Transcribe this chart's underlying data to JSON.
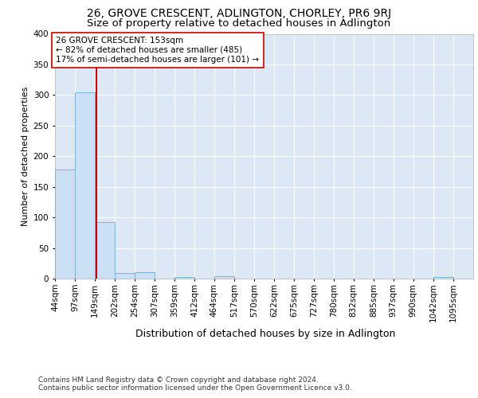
{
  "title1": "26, GROVE CRESCENT, ADLINGTON, CHORLEY, PR6 9RJ",
  "title2": "Size of property relative to detached houses in Adlington",
  "xlabel": "Distribution of detached houses by size in Adlington",
  "ylabel": "Number of detached properties",
  "footer1": "Contains HM Land Registry data © Crown copyright and database right 2024.",
  "footer2": "Contains public sector information licensed under the Open Government Licence v3.0.",
  "bar_edges": [
    44,
    97,
    149,
    202,
    254,
    307,
    359,
    412,
    464,
    517,
    570,
    622,
    675,
    727,
    780,
    832,
    885,
    937,
    990,
    1042,
    1095
  ],
  "bar_heights": [
    178,
    304,
    93,
    9,
    10,
    0,
    3,
    0,
    4,
    0,
    0,
    0,
    0,
    0,
    0,
    0,
    0,
    0,
    0,
    3,
    0
  ],
  "bar_color": "#cce0f5",
  "bar_edge_color": "#7ab4d8",
  "property_size": 153,
  "red_line_color": "#cc0000",
  "annotation_text": "26 GROVE CRESCENT: 153sqm\n← 82% of detached houses are smaller (485)\n17% of semi-detached houses are larger (101) →",
  "annotation_box_color": "white",
  "annotation_box_edge": "#cc0000",
  "ylim": [
    0,
    400
  ],
  "yticks": [
    0,
    50,
    100,
    150,
    200,
    250,
    300,
    350,
    400
  ],
  "background_color": "#dce8f5",
  "grid_color": "white",
  "title1_fontsize": 10,
  "title2_fontsize": 9.5,
  "xlabel_fontsize": 9,
  "ylabel_fontsize": 8,
  "tick_fontsize": 7.5,
  "footer_fontsize": 6.5
}
